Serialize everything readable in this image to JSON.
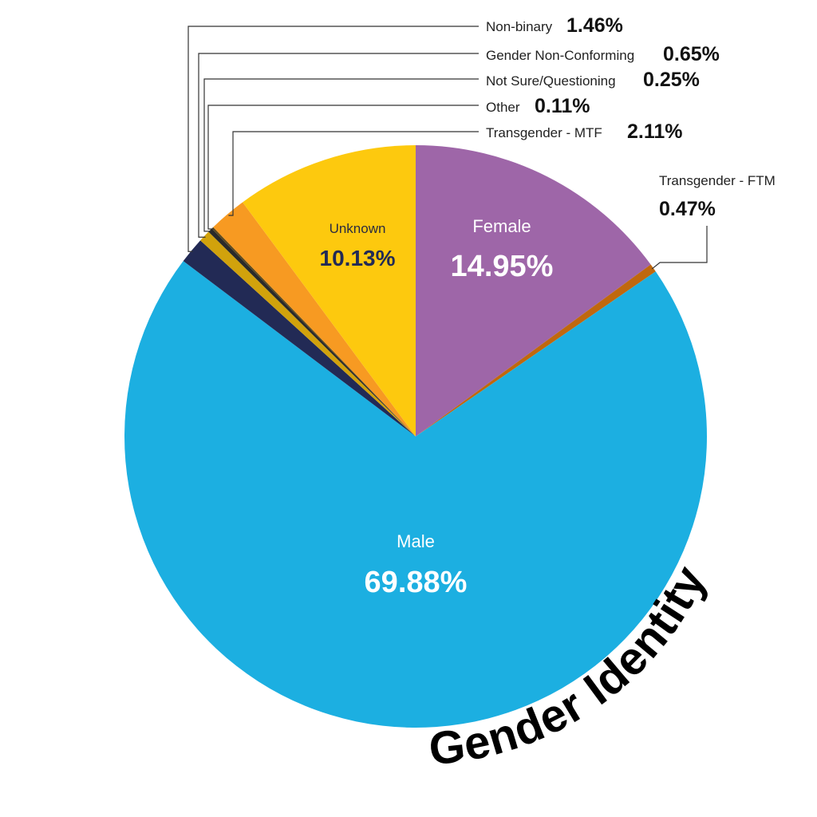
{
  "chart_data": {
    "type": "pie",
    "title": "Gender Identity",
    "slices": [
      {
        "label": "Female",
        "value": 14.95,
        "display": "14.95%",
        "color": "#9e66a8"
      },
      {
        "label": "Transgender - FTM",
        "value": 0.47,
        "display": "0.47%",
        "color": "#c0680e"
      },
      {
        "label": "Male",
        "value": 69.88,
        "display": "69.88%",
        "color": "#1cafe1"
      },
      {
        "label": "Non-binary",
        "value": 1.46,
        "display": "1.46%",
        "color": "#222a55"
      },
      {
        "label": "Gender Non-Conforming",
        "value": 0.65,
        "display": "0.65%",
        "color": "#d1a20c"
      },
      {
        "label": "Not Sure/Questioning",
        "value": 0.25,
        "display": "0.25%",
        "color": "#2a2a2a"
      },
      {
        "label": "Other",
        "value": 0.11,
        "display": "0.11%",
        "color": "#5c4a1e"
      },
      {
        "label": "Transgender - MTF",
        "value": 2.11,
        "display": "2.11%",
        "color": "#f79a22"
      },
      {
        "label": "Unknown",
        "value": 10.13,
        "display": "10.13%",
        "color": "#fdc90e"
      }
    ]
  }
}
